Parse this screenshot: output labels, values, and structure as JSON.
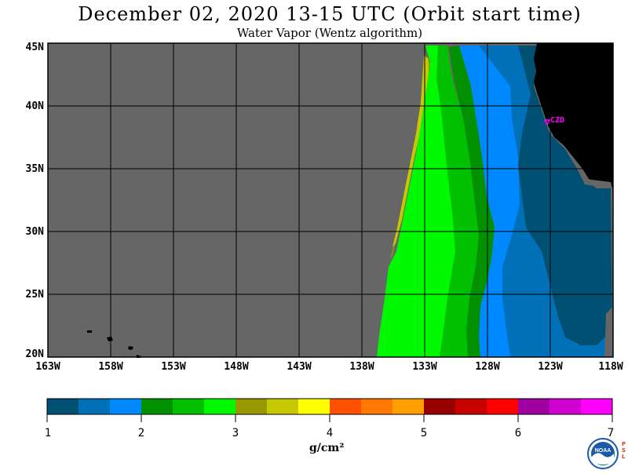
{
  "title": "December 02, 2020  13-15 UTC  (Orbit start time)",
  "subtitle": "Water Vapor (Wentz algorithm)",
  "map": {
    "lat_labels": [
      "45N",
      "40N",
      "35N",
      "30N",
      "25N",
      "20N"
    ],
    "lon_labels": [
      "163W",
      "158W",
      "153W",
      "148W",
      "143W",
      "138W",
      "133W",
      "128W",
      "123W",
      "118W"
    ],
    "lat_range": [
      20,
      45
    ],
    "lon_range": [
      -163,
      -118
    ],
    "no_data_color": "#666666",
    "land_color": "#000000",
    "marker_label": "CZD",
    "marker_color": "#ff00ff",
    "marker_lat": 38.6,
    "marker_lon": -123.2
  },
  "colorbar": {
    "ticks": [
      "1",
      "2",
      "3",
      "4",
      "5",
      "6",
      "7"
    ],
    "colors": [
      "#005073",
      "#0070b8",
      "#0088ff",
      "#009000",
      "#00c000",
      "#00f800",
      "#989800",
      "#c8c800",
      "#ffff00",
      "#ff5000",
      "#ff7800",
      "#ffa000",
      "#980000",
      "#c80000",
      "#ff0000",
      "#a000a0",
      "#d000d0",
      "#ff00ff"
    ],
    "units": "g/cm²"
  },
  "logo": {
    "label": "NOAA",
    "side_text": "PSL"
  }
}
